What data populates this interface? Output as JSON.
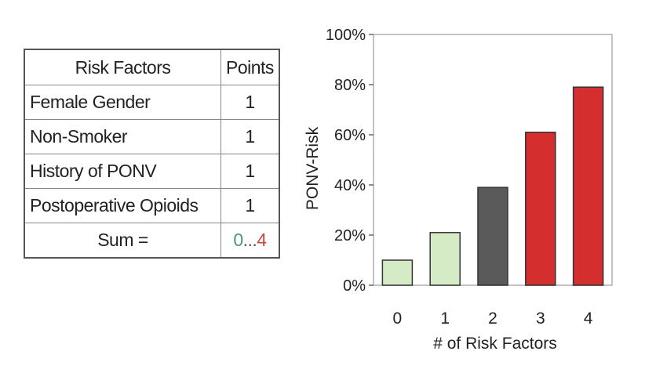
{
  "table": {
    "headers": [
      "Risk Factors",
      "Points"
    ],
    "rows": [
      {
        "factor": "Female Gender",
        "points": "1"
      },
      {
        "factor": "Non-Smoker",
        "points": "1"
      },
      {
        "factor": "History of PONV",
        "points": "1"
      },
      {
        "factor": "Postoperative Opioids",
        "points": "1"
      }
    ],
    "sum_label": "Sum =",
    "sum_min": "0",
    "sum_separator": "...",
    "sum_max": "4",
    "colors": {
      "sum_min": "#4a9a6e",
      "sum_max": "#c8463a"
    }
  },
  "chart_data": {
    "type": "bar",
    "categories": [
      "0",
      "1",
      "2",
      "3",
      "4"
    ],
    "values": [
      10,
      21,
      39,
      61,
      79
    ],
    "bar_colors": [
      "#d4ebc5",
      "#d4ebc5",
      "#5a5a5a",
      "#d42e2e",
      "#d42e2e"
    ],
    "xlabel": "# of Risk Factors",
    "ylabel": "PONV-Risk",
    "ylim": [
      0,
      100
    ],
    "yticks": [
      0,
      20,
      40,
      60,
      80,
      100
    ],
    "ytick_labels": [
      "0%",
      "20%",
      "40%",
      "60%",
      "80%",
      "100%"
    ],
    "grid": false
  }
}
